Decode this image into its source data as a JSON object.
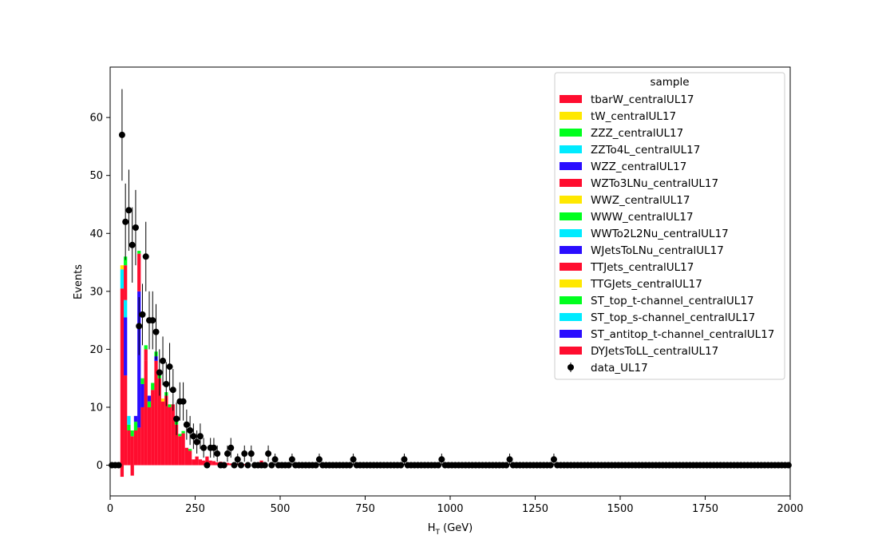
{
  "chart_data": {
    "type": "bar",
    "stacked": true,
    "xlabel_main": "H",
    "xlabel_sub": "T",
    "xlabel_unit": " (GeV)",
    "ylabel": "Events",
    "xlim": [
      0,
      2000
    ],
    "ylim": [
      -5.3,
      68.7
    ],
    "xticks": [
      0,
      250,
      500,
      750,
      1000,
      1250,
      1500,
      1750,
      2000
    ],
    "yticks": [
      0,
      10,
      20,
      30,
      40,
      50,
      60
    ],
    "grid": false,
    "legend": {
      "title": "sample",
      "placement": "top-right",
      "entries": [
        {
          "label": "tbarW_centralUL17",
          "color": "#ff0d2f"
        },
        {
          "label": "tW_centralUL17",
          "color": "#ffe800"
        },
        {
          "label": "ZZZ_centralUL17",
          "color": "#00ff1e"
        },
        {
          "label": "ZZTo4L_centralUL17",
          "color": "#00ebff"
        },
        {
          "label": "WZZ_centralUL17",
          "color": "#2a0dff"
        },
        {
          "label": "WZTo3LNu_centralUL17",
          "color": "#ff0d2f"
        },
        {
          "label": "WWZ_centralUL17",
          "color": "#ffe800"
        },
        {
          "label": "WWW_centralUL17",
          "color": "#00ff1e"
        },
        {
          "label": "WWTo2L2Nu_centralUL17",
          "color": "#00ebff"
        },
        {
          "label": "WJetsToLNu_centralUL17",
          "color": "#2a0dff"
        },
        {
          "label": "TTJets_centralUL17",
          "color": "#ff0d2f"
        },
        {
          "label": "TTGJets_centralUL17",
          "color": "#ffe800"
        },
        {
          "label": "ST_top_t-channel_centralUL17",
          "color": "#00ff1e"
        },
        {
          "label": "ST_top_s-channel_centralUL17",
          "color": "#00ebff"
        },
        {
          "label": "ST_antitop_t-channel_centralUL17",
          "color": "#2a0dff"
        },
        {
          "label": "DYJetsToLL_centralUL17",
          "color": "#ff0d2f"
        },
        {
          "label": "data_UL17",
          "color": "#000000",
          "marker": "errorbar"
        }
      ]
    },
    "bin_width": 10,
    "mc_stack": [
      {
        "x": 30,
        "main": -2,
        "parts": []
      },
      {
        "x": 30,
        "main": 30.5,
        "parts": [
          {
            "v": 3.3,
            "c": "#00ebff"
          },
          {
            "v": 0.7,
            "c": "#ffe800"
          }
        ]
      },
      {
        "x": 40,
        "main": 15.5,
        "parts": [
          {
            "v": 10,
            "c": "#2a0dff"
          },
          {
            "v": 3,
            "c": "#00ebff"
          },
          {
            "v": 6,
            "c": "#ff0d2f"
          },
          {
            "v": 1.5,
            "c": "#00ff1e"
          }
        ]
      },
      {
        "x": 50,
        "main": 6,
        "parts": [
          {
            "v": 1,
            "c": "#00ff1e"
          },
          {
            "v": 1.5,
            "c": "#00ebff"
          }
        ]
      },
      {
        "x": 60,
        "main": -1.8,
        "parts": []
      },
      {
        "x": 60,
        "main": 5,
        "parts": [
          {
            "v": 1,
            "c": "#00ff1e"
          }
        ]
      },
      {
        "x": 70,
        "main": 6,
        "parts": [
          {
            "v": 1.5,
            "c": "#00ff1e"
          },
          {
            "v": 1,
            "c": "#2a0dff"
          }
        ]
      },
      {
        "x": 80,
        "main": 6.5,
        "parts": [
          {
            "v": 23.5,
            "c": "#2a0dff"
          },
          {
            "v": 6.5,
            "c": "#ff0d2f"
          },
          {
            "v": 0.5,
            "c": "#00ff1e"
          }
        ]
      },
      {
        "x": 90,
        "main": 10,
        "parts": [
          {
            "v": 4,
            "c": "#2a0dff"
          },
          {
            "v": 1,
            "c": "#00ff1e"
          }
        ]
      },
      {
        "x": 100,
        "main": 18,
        "parts": [
          {
            "v": 2,
            "c": "#ff0d2f"
          },
          {
            "v": 0.7,
            "c": "#00ff1e"
          }
        ]
      },
      {
        "x": 110,
        "main": 10,
        "parts": [
          {
            "v": 1,
            "c": "#00ff1e"
          },
          {
            "v": 1,
            "c": "#2a0dff"
          }
        ]
      },
      {
        "x": 120,
        "main": 13,
        "parts": [
          {
            "v": 1.2,
            "c": "#00ff1e"
          }
        ]
      },
      {
        "x": 130,
        "main": 18,
        "parts": [
          {
            "v": 0.8,
            "c": "#2a0dff"
          },
          {
            "v": 0.8,
            "c": "#00ff1e"
          }
        ]
      },
      {
        "x": 140,
        "main": 15,
        "parts": [
          {
            "v": 0.7,
            "c": "#00ff1e"
          }
        ]
      },
      {
        "x": 150,
        "main": 11,
        "parts": [
          {
            "v": 0.5,
            "c": "#ffe800"
          }
        ]
      },
      {
        "x": 160,
        "main": 12,
        "parts": [
          {
            "v": 0.6,
            "c": "#00ff1e"
          }
        ]
      },
      {
        "x": 170,
        "main": 10,
        "parts": [
          {
            "v": 0.5,
            "c": "#00ff1e"
          }
        ]
      },
      {
        "x": 180,
        "main": 10.5,
        "parts": []
      },
      {
        "x": 190,
        "main": 7,
        "parts": [
          {
            "v": 0.5,
            "c": "#00ff1e"
          }
        ]
      },
      {
        "x": 200,
        "main": 5,
        "parts": [
          {
            "v": 0.4,
            "c": "#00ff1e"
          }
        ]
      },
      {
        "x": 210,
        "main": 5.5,
        "parts": [
          {
            "v": 0.4,
            "c": "#00ff1e"
          }
        ]
      },
      {
        "x": 220,
        "main": 3,
        "parts": []
      },
      {
        "x": 230,
        "main": 2.5,
        "parts": [
          {
            "v": 0.3,
            "c": "#00ff1e"
          }
        ]
      },
      {
        "x": 240,
        "main": 1,
        "parts": []
      },
      {
        "x": 250,
        "main": 1.5,
        "parts": []
      },
      {
        "x": 260,
        "main": 1,
        "parts": []
      },
      {
        "x": 270,
        "main": 0.8,
        "parts": []
      },
      {
        "x": 280,
        "main": 1.5,
        "parts": []
      },
      {
        "x": 290,
        "main": 0.8,
        "parts": []
      },
      {
        "x": 300,
        "main": 0.7,
        "parts": []
      },
      {
        "x": 310,
        "main": 0.5,
        "parts": []
      },
      {
        "x": 320,
        "main": 0.6,
        "parts": []
      },
      {
        "x": 330,
        "main": 0.5,
        "parts": []
      },
      {
        "x": 340,
        "main": 0.4,
        "parts": []
      },
      {
        "x": 350,
        "main": 0.3,
        "parts": []
      },
      {
        "x": 360,
        "main": 0.3,
        "parts": []
      },
      {
        "x": 370,
        "main": 0.3,
        "parts": []
      },
      {
        "x": 380,
        "main": 0.2,
        "parts": []
      },
      {
        "x": 390,
        "main": 0.2,
        "parts": []
      },
      {
        "x": 400,
        "main": 0.2,
        "parts": []
      },
      {
        "x": 420,
        "main": 0.2,
        "parts": []
      },
      {
        "x": 440,
        "main": 0.8,
        "parts": []
      }
    ],
    "data_points": [
      {
        "x": 35,
        "y": 57.0,
        "err": 7.9
      },
      {
        "x": 45,
        "y": 42.0,
        "err": 6.6
      },
      {
        "x": 55,
        "y": 44.0,
        "err": 7.0
      },
      {
        "x": 65,
        "y": 38.0,
        "err": 6.5
      },
      {
        "x": 75,
        "y": 41.0,
        "err": 6.5
      },
      {
        "x": 85,
        "y": 24.0,
        "err": 5.0
      },
      {
        "x": 95,
        "y": 26.0,
        "err": 5.3
      },
      {
        "x": 105,
        "y": 36.0,
        "err": 6.0
      },
      {
        "x": 115,
        "y": 25.0,
        "err": 5.0
      },
      {
        "x": 125,
        "y": 25.0,
        "err": 5.0
      },
      {
        "x": 135,
        "y": 23.0,
        "err": 4.8
      },
      {
        "x": 145,
        "y": 16.0,
        "err": 4.0
      },
      {
        "x": 155,
        "y": 18.0,
        "err": 4.2
      },
      {
        "x": 165,
        "y": 14.0,
        "err": 3.8
      },
      {
        "x": 175,
        "y": 17.0,
        "err": 4.1
      },
      {
        "x": 185,
        "y": 13.0,
        "err": 3.6
      },
      {
        "x": 195,
        "y": 8.0,
        "err": 2.8
      },
      {
        "x": 205,
        "y": 11.0,
        "err": 3.3
      },
      {
        "x": 215,
        "y": 11.0,
        "err": 3.3
      },
      {
        "x": 225,
        "y": 7.0,
        "err": 2.6
      },
      {
        "x": 235,
        "y": 6.0,
        "err": 2.5
      },
      {
        "x": 245,
        "y": 5.0,
        "err": 2.2
      },
      {
        "x": 255,
        "y": 4.0,
        "err": 2.0
      },
      {
        "x": 265,
        "y": 5.0,
        "err": 2.2
      },
      {
        "x": 275,
        "y": 3.0,
        "err": 1.7
      },
      {
        "x": 285,
        "y": 0.0,
        "err": 0
      },
      {
        "x": 295,
        "y": 3.0,
        "err": 1.7
      },
      {
        "x": 305,
        "y": 3.0,
        "err": 1.7
      },
      {
        "x": 315,
        "y": 2.0,
        "err": 1.4
      },
      {
        "x": 325,
        "y": 0.0,
        "err": 0
      },
      {
        "x": 335,
        "y": 0.0,
        "err": 0
      },
      {
        "x": 345,
        "y": 2.0,
        "err": 1.4
      },
      {
        "x": 355,
        "y": 3.0,
        "err": 1.7
      },
      {
        "x": 365,
        "y": 0.0,
        "err": 0
      },
      {
        "x": 375,
        "y": 1.0,
        "err": 1.0
      },
      {
        "x": 385,
        "y": 0.0,
        "err": 0
      },
      {
        "x": 395,
        "y": 2.0,
        "err": 1.4
      },
      {
        "x": 405,
        "y": 0.0,
        "err": 0
      },
      {
        "x": 415,
        "y": 2.0,
        "err": 1.4
      },
      {
        "x": 465,
        "y": 2.0,
        "err": 1.4
      },
      {
        "x": 485,
        "y": 1.0,
        "err": 1.0
      },
      {
        "x": 535,
        "y": 1.0,
        "err": 1.0
      },
      {
        "x": 615,
        "y": 1.0,
        "err": 1.0
      },
      {
        "x": 715,
        "y": 1.0,
        "err": 1.0
      },
      {
        "x": 865,
        "y": 1.0,
        "err": 1.0
      },
      {
        "x": 975,
        "y": 1.0,
        "err": 1.0
      },
      {
        "x": 1175,
        "y": 1.0,
        "err": 1.0
      },
      {
        "x": 1305,
        "y": 1.0,
        "err": 1.0
      }
    ]
  }
}
